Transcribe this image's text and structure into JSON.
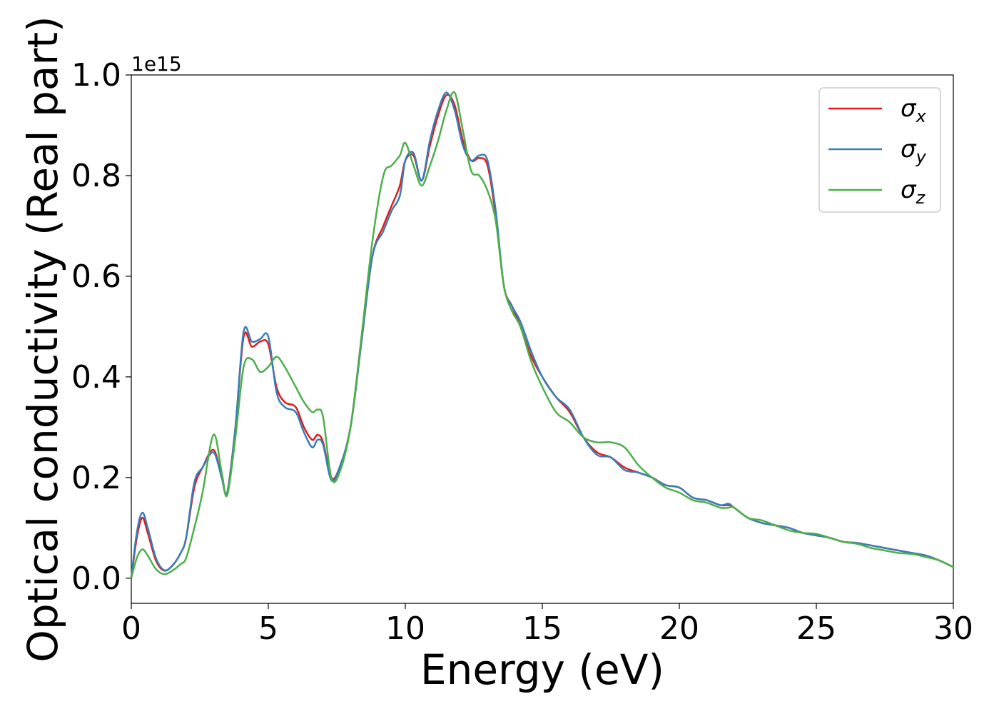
{
  "chart_data": {
    "type": "line",
    "title": "",
    "xlabel": "Energy (eV)",
    "ylabel": "Optical conductivity (Real part)",
    "y_offset_label": "1e15",
    "xlim": [
      0,
      30
    ],
    "ylim": [
      -0.05,
      1.0
    ],
    "xticks": [
      0,
      5,
      10,
      15,
      20,
      25,
      30
    ],
    "xtick_labels": [
      "0",
      "5",
      "10",
      "15",
      "20",
      "25",
      "30"
    ],
    "yticks": [
      0.0,
      0.2,
      0.4,
      0.6,
      0.8,
      1.0
    ],
    "ytick_labels": [
      "0.0",
      "0.2",
      "0.4",
      "0.6",
      "0.8",
      "1.0"
    ],
    "grid": false,
    "legend_position": "top-right",
    "series": [
      {
        "name": "σx",
        "symbol": "σ",
        "subscript": "x",
        "color": "#e41a1c",
        "x": [
          0,
          0.2,
          0.4,
          0.6,
          0.9,
          1.2,
          1.5,
          1.8,
          2.0,
          2.3,
          2.6,
          3.0,
          3.3,
          3.5,
          3.8,
          4.1,
          4.4,
          4.7,
          5.0,
          5.3,
          5.6,
          6.0,
          6.3,
          6.6,
          6.8,
          7.0,
          7.3,
          7.6,
          8.0,
          8.4,
          8.8,
          9.2,
          9.5,
          9.8,
          10.0,
          10.3,
          10.6,
          10.9,
          11.2,
          11.5,
          11.8,
          12.1,
          12.4,
          12.7,
          13.0,
          13.3,
          13.6,
          13.9,
          14.2,
          14.6,
          15.0,
          15.5,
          16.0,
          16.5,
          17.0,
          17.5,
          18.0,
          18.5,
          19.0,
          19.5,
          20.0,
          20.5,
          21.0,
          21.5,
          21.8,
          22.0,
          22.5,
          23.0,
          23.5,
          24.0,
          24.5,
          25.0,
          25.5,
          26.0,
          26.5,
          27.0,
          27.5,
          28.0,
          28.5,
          29.0,
          29.5,
          30.0
        ],
        "y": [
          0.0,
          0.08,
          0.12,
          0.09,
          0.035,
          0.015,
          0.025,
          0.05,
          0.08,
          0.18,
          0.22,
          0.255,
          0.2,
          0.17,
          0.3,
          0.48,
          0.46,
          0.47,
          0.465,
          0.38,
          0.35,
          0.34,
          0.3,
          0.275,
          0.285,
          0.27,
          0.2,
          0.22,
          0.3,
          0.47,
          0.64,
          0.7,
          0.74,
          0.78,
          0.83,
          0.84,
          0.79,
          0.86,
          0.92,
          0.96,
          0.94,
          0.87,
          0.83,
          0.835,
          0.82,
          0.72,
          0.58,
          0.54,
          0.5,
          0.44,
          0.4,
          0.36,
          0.33,
          0.28,
          0.25,
          0.24,
          0.22,
          0.21,
          0.2,
          0.185,
          0.18,
          0.16,
          0.155,
          0.145,
          0.145,
          0.14,
          0.12,
          0.11,
          0.105,
          0.1,
          0.09,
          0.085,
          0.08,
          0.072,
          0.07,
          0.065,
          0.06,
          0.055,
          0.05,
          0.045,
          0.035,
          0.022
        ]
      },
      {
        "name": "σy",
        "symbol": "σ",
        "subscript": "y",
        "color": "#377eb8",
        "x": [
          0,
          0.2,
          0.4,
          0.6,
          0.9,
          1.2,
          1.5,
          1.8,
          2.0,
          2.3,
          2.6,
          3.0,
          3.3,
          3.5,
          3.8,
          4.1,
          4.4,
          4.7,
          5.0,
          5.3,
          5.6,
          6.0,
          6.3,
          6.6,
          6.8,
          7.0,
          7.3,
          7.6,
          8.0,
          8.4,
          8.8,
          9.2,
          9.5,
          9.8,
          10.0,
          10.3,
          10.6,
          10.9,
          11.2,
          11.5,
          11.8,
          12.1,
          12.4,
          12.7,
          13.0,
          13.3,
          13.6,
          13.9,
          14.2,
          14.6,
          15.0,
          15.5,
          16.0,
          16.5,
          17.0,
          17.5,
          18.0,
          18.5,
          19.0,
          19.5,
          20.0,
          20.5,
          21.0,
          21.5,
          21.8,
          22.0,
          22.5,
          23.0,
          23.5,
          24.0,
          24.5,
          25.0,
          25.5,
          26.0,
          26.5,
          27.0,
          27.5,
          28.0,
          28.5,
          29.0,
          29.5,
          30.0
        ],
        "y": [
          0.0,
          0.09,
          0.13,
          0.1,
          0.04,
          0.016,
          0.025,
          0.05,
          0.08,
          0.19,
          0.22,
          0.25,
          0.2,
          0.17,
          0.3,
          0.49,
          0.47,
          0.475,
          0.48,
          0.37,
          0.34,
          0.33,
          0.29,
          0.26,
          0.275,
          0.265,
          0.195,
          0.22,
          0.3,
          0.47,
          0.64,
          0.69,
          0.73,
          0.76,
          0.83,
          0.845,
          0.79,
          0.87,
          0.93,
          0.965,
          0.93,
          0.86,
          0.83,
          0.84,
          0.83,
          0.73,
          0.58,
          0.54,
          0.51,
          0.45,
          0.4,
          0.36,
          0.335,
          0.28,
          0.245,
          0.24,
          0.215,
          0.21,
          0.2,
          0.185,
          0.18,
          0.16,
          0.155,
          0.145,
          0.148,
          0.14,
          0.12,
          0.11,
          0.105,
          0.1,
          0.09,
          0.085,
          0.08,
          0.072,
          0.07,
          0.065,
          0.06,
          0.055,
          0.05,
          0.045,
          0.035,
          0.022
        ]
      },
      {
        "name": "σz",
        "symbol": "σ",
        "subscript": "z",
        "color": "#4daf4a",
        "x": [
          0,
          0.2,
          0.4,
          0.6,
          0.9,
          1.2,
          1.5,
          1.8,
          2.0,
          2.3,
          2.6,
          3.0,
          3.3,
          3.5,
          3.8,
          4.1,
          4.4,
          4.7,
          5.0,
          5.3,
          5.6,
          6.0,
          6.3,
          6.6,
          6.8,
          7.0,
          7.3,
          7.6,
          8.0,
          8.4,
          8.8,
          9.2,
          9.5,
          9.8,
          10.0,
          10.3,
          10.6,
          10.9,
          11.2,
          11.5,
          11.8,
          12.1,
          12.4,
          12.7,
          13.0,
          13.3,
          13.6,
          13.9,
          14.2,
          14.6,
          15.0,
          15.5,
          16.0,
          16.5,
          17.0,
          17.5,
          18.0,
          18.5,
          19.0,
          19.5,
          20.0,
          20.5,
          21.0,
          21.5,
          21.8,
          22.0,
          22.5,
          23.0,
          23.5,
          24.0,
          24.5,
          25.0,
          25.5,
          26.0,
          26.5,
          27.0,
          27.5,
          28.0,
          28.5,
          29.0,
          29.5,
          30.0
        ],
        "y": [
          0.0,
          0.04,
          0.057,
          0.045,
          0.018,
          0.008,
          0.015,
          0.028,
          0.04,
          0.1,
          0.17,
          0.285,
          0.21,
          0.165,
          0.28,
          0.42,
          0.435,
          0.41,
          0.42,
          0.44,
          0.42,
          0.38,
          0.35,
          0.33,
          0.335,
          0.32,
          0.2,
          0.21,
          0.3,
          0.48,
          0.67,
          0.8,
          0.82,
          0.84,
          0.865,
          0.82,
          0.78,
          0.82,
          0.87,
          0.93,
          0.965,
          0.89,
          0.81,
          0.8,
          0.77,
          0.71,
          0.58,
          0.53,
          0.5,
          0.43,
          0.38,
          0.33,
          0.31,
          0.28,
          0.27,
          0.27,
          0.26,
          0.225,
          0.2,
          0.18,
          0.17,
          0.155,
          0.15,
          0.14,
          0.14,
          0.14,
          0.12,
          0.115,
          0.105,
          0.095,
          0.09,
          0.088,
          0.08,
          0.072,
          0.068,
          0.06,
          0.055,
          0.05,
          0.048,
          0.042,
          0.035,
          0.022
        ]
      }
    ]
  }
}
